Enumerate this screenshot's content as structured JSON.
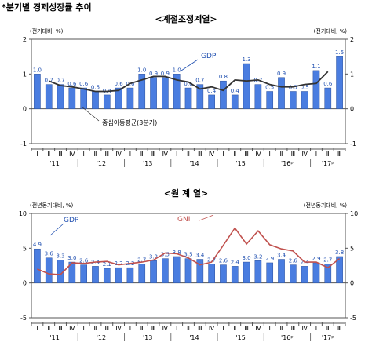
{
  "page_title": "*분기별 경제성장률 추이",
  "chart_data": [
    {
      "type": "bar",
      "title": "<계절조정계열>",
      "ylabel_left": "(전기대비, %)",
      "ylabel_right": "(전기대비, %)",
      "ylim": [
        -1,
        2
      ],
      "yticks": [
        "-1",
        "0",
        "1",
        "2"
      ],
      "categories": [
        "Ⅰ",
        "Ⅱ",
        "Ⅲ",
        "Ⅳ",
        "Ⅰ",
        "Ⅱ",
        "Ⅲ",
        "Ⅳ",
        "Ⅰ",
        "Ⅱ",
        "Ⅲ",
        "Ⅳ",
        "Ⅰ",
        "Ⅱ",
        "Ⅲ",
        "Ⅳ",
        "Ⅰ",
        "Ⅱ",
        "Ⅲ",
        "Ⅳ",
        "Ⅰ",
        "Ⅱ",
        "Ⅲ",
        "Ⅳ",
        "Ⅰ",
        "Ⅱ",
        "Ⅲ"
      ],
      "years": [
        "'11",
        "'12",
        "'13",
        "'14",
        "'15",
        "'16ᵖ",
        "'17ᵖ"
      ],
      "series": [
        {
          "name": "GDP",
          "kind": "bar",
          "color": "#4a7de0",
          "values": [
            1.0,
            0.7,
            0.7,
            0.6,
            0.6,
            0.5,
            0.4,
            0.6,
            0.6,
            1.0,
            0.9,
            0.9,
            1.0,
            0.6,
            0.7,
            0.4,
            0.8,
            0.4,
            1.3,
            0.7,
            0.5,
            0.9,
            0.5,
            0.5,
            1.1,
            0.6,
            1.5
          ]
        },
        {
          "name": "중심이동평균(3분기)",
          "kind": "line",
          "color": "#333333",
          "values": [
            null,
            0.8,
            0.67,
            0.63,
            0.57,
            0.5,
            0.5,
            0.53,
            0.73,
            0.83,
            0.93,
            0.93,
            0.83,
            0.77,
            0.57,
            0.63,
            0.53,
            0.83,
            0.8,
            0.83,
            0.7,
            0.63,
            0.63,
            0.7,
            0.73,
            1.07,
            null
          ]
        }
      ],
      "annotations": [
        "GDP",
        "중심이동평균(3분기)"
      ]
    },
    {
      "type": "bar",
      "title": "<원 계 열>",
      "ylabel_left": "(전년동기대비, %)",
      "ylabel_right": "(전년동기대비, %)",
      "ylim": [
        -5,
        10
      ],
      "yticks": [
        "-5",
        "0",
        "5",
        "10"
      ],
      "categories": [
        "Ⅰ",
        "Ⅱ",
        "Ⅲ",
        "Ⅳ",
        "Ⅰ",
        "Ⅱ",
        "Ⅲ",
        "Ⅳ",
        "Ⅰ",
        "Ⅱ",
        "Ⅲ",
        "Ⅳ",
        "Ⅰ",
        "Ⅱ",
        "Ⅲ",
        "Ⅳ",
        "Ⅰ",
        "Ⅱ",
        "Ⅲ",
        "Ⅳ",
        "Ⅰ",
        "Ⅱ",
        "Ⅲ",
        "Ⅳ",
        "Ⅰ",
        "Ⅱ",
        "Ⅲ"
      ],
      "years": [
        "'11",
        "'12",
        "'13",
        "'14",
        "'15",
        "'16ᵖ",
        "'17ᵖ"
      ],
      "series": [
        {
          "name": "GDP",
          "kind": "bar",
          "color": "#4a7de0",
          "values": [
            4.9,
            3.6,
            3.3,
            3.0,
            2.6,
            2.4,
            2.1,
            2.2,
            2.2,
            2.7,
            3.2,
            3.5,
            3.8,
            3.5,
            3.4,
            2.7,
            2.6,
            2.4,
            3.0,
            3.2,
            2.9,
            3.4,
            2.6,
            2.4,
            2.9,
            2.7,
            3.8
          ]
        },
        {
          "name": "GNI",
          "kind": "line",
          "color": "#c0504d",
          "values": [
            2.0,
            1.3,
            1.2,
            2.9,
            2.8,
            3.0,
            3.1,
            2.6,
            2.8,
            3.0,
            3.3,
            4.3,
            4.2,
            3.6,
            2.6,
            3.0,
            5.4,
            7.9,
            5.6,
            7.5,
            5.5,
            4.9,
            4.6,
            3.0,
            3.0,
            2.2,
            3.5
          ]
        }
      ],
      "annotations": [
        "GDP",
        "GNI"
      ]
    }
  ]
}
